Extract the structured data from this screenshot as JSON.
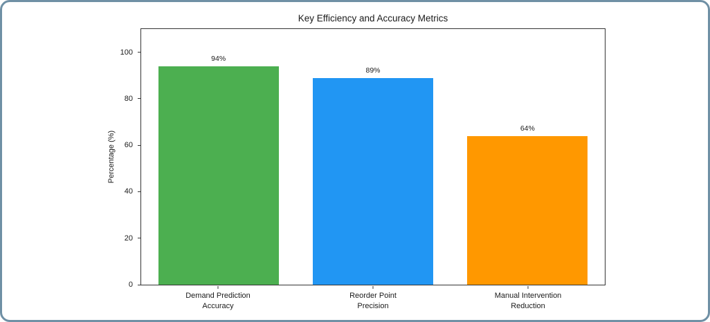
{
  "card": {
    "background": "#ffffff",
    "border_color": "#6F90A5"
  },
  "chart_data": {
    "type": "bar",
    "title": "Key Efficiency and Accuracy Metrics",
    "xlabel": "",
    "ylabel": "Percentage (%)",
    "categories": [
      "Demand Prediction\nAccuracy",
      "Reorder Point\nPrecision",
      "Manual Intervention\nReduction"
    ],
    "values": [
      94,
      89,
      64
    ],
    "value_labels": [
      "94%",
      "89%",
      "64%"
    ],
    "colors": [
      "#4CAF50",
      "#2196F3",
      "#FF9800"
    ],
    "yticks": [
      0,
      20,
      40,
      60,
      80,
      100
    ],
    "ylim": [
      0,
      110
    ],
    "grid": false,
    "legend_position": "none",
    "axis_color": "#333333",
    "text_color": "#1a1a1a"
  }
}
